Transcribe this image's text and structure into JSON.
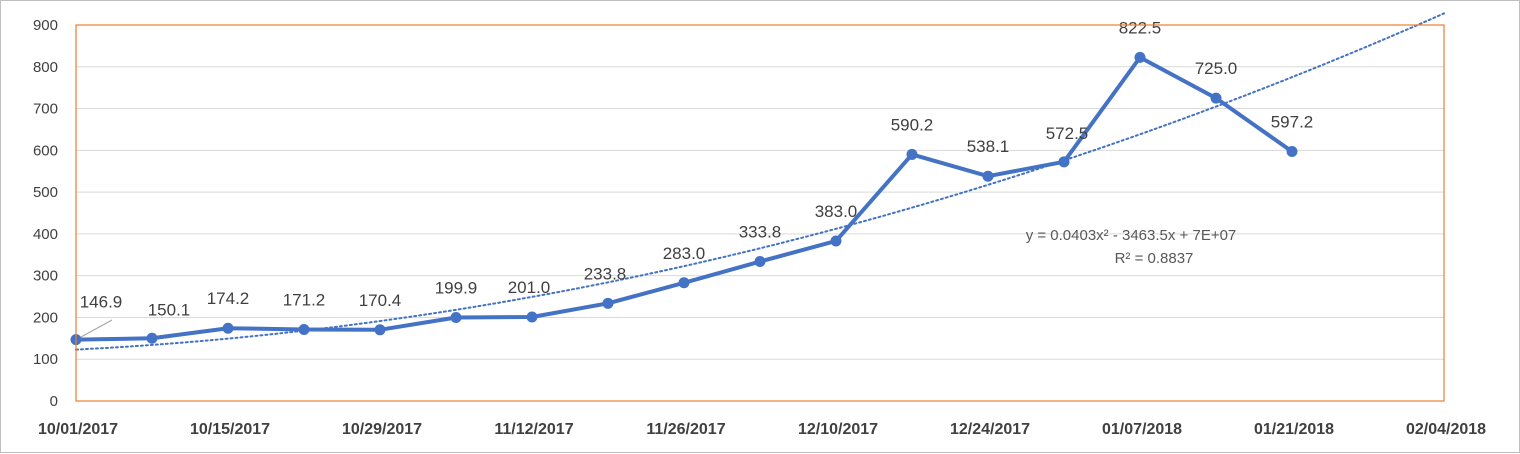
{
  "chart_data": {
    "type": "line",
    "x": [
      "10/01/2017",
      "10/08/2017",
      "10/15/2017",
      "10/22/2017",
      "10/29/2017",
      "11/05/2017",
      "11/12/2017",
      "11/19/2017",
      "11/26/2017",
      "12/03/2017",
      "12/10/2017",
      "12/17/2017",
      "12/24/2017",
      "12/31/2017",
      "01/07/2018",
      "01/14/2018",
      "01/21/2018"
    ],
    "series": [
      {
        "values": [
          146.9,
          150.1,
          174.2,
          171.2,
          170.4,
          199.9,
          201.0,
          233.8,
          283.0,
          333.8,
          383.0,
          590.2,
          538.1,
          572.5,
          822.5,
          725.0,
          597.2
        ],
        "labels": [
          "146.9",
          "150.1",
          "174.2",
          "171.2",
          "170.4",
          "199.9",
          "201.0",
          "233.8",
          "283.0",
          "333.8",
          "383.0",
          "590.2",
          "538.1",
          "572.5",
          "822.5",
          "725.0",
          "597.2"
        ],
        "color": "#4472C4"
      }
    ],
    "trendline": {
      "kind": "polynomial-2",
      "equation": "y = 0.0403x² - 3463.5x + 7E+07",
      "r_squared": "R² = 0.8837",
      "color": "#4472C4",
      "style": "dotted",
      "forward_forecast_to": "02/04/2018"
    },
    "x_ticks": [
      "10/01/2017",
      "10/15/2017",
      "10/29/2017",
      "11/12/2017",
      "11/26/2017",
      "12/10/2017",
      "12/24/2017",
      "01/07/2018",
      "01/21/2018",
      "02/04/2018"
    ],
    "y_ticks": [
      "0",
      "100",
      "200",
      "300",
      "400",
      "500",
      "600",
      "700",
      "800",
      "900"
    ],
    "ylim": [
      0,
      900
    ],
    "xlim": [
      "10/01/2017",
      "02/04/2018"
    ],
    "grid": "horizontal",
    "plot_border_color": "#ED7D31",
    "legend": "none"
  }
}
